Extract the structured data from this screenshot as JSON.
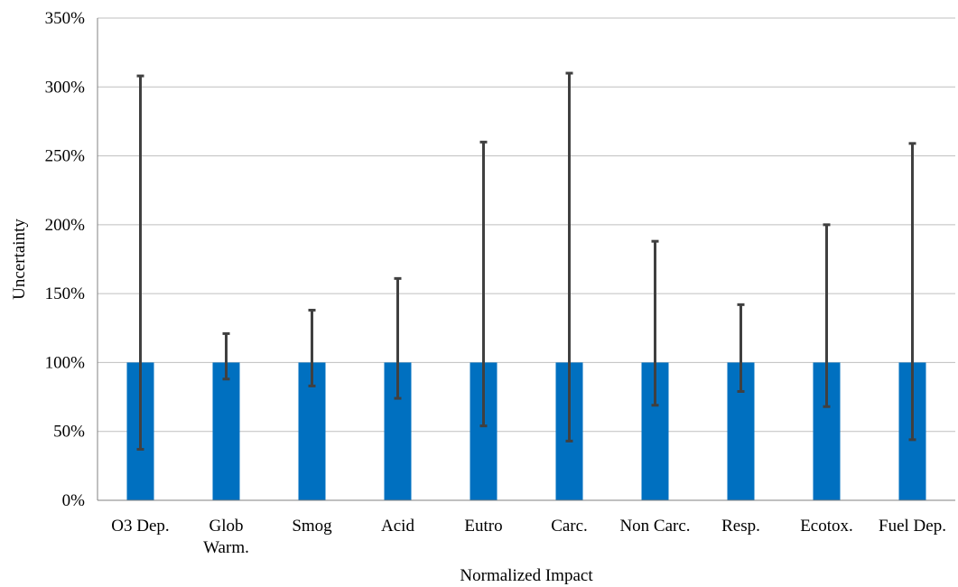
{
  "chart_data": {
    "type": "bar",
    "title": "",
    "xlabel": "Normalized Impact",
    "ylabel": "Uncertainty",
    "ylim": [
      0,
      350
    ],
    "y_ticks": [
      0,
      50,
      100,
      150,
      200,
      250,
      300,
      350
    ],
    "y_tick_labels": [
      "0%",
      "50%",
      "100%",
      "150%",
      "200%",
      "250%",
      "300%",
      "350%"
    ],
    "grid": true,
    "legend": "none",
    "categories": [
      [
        "O3 Dep."
      ],
      [
        "Glob",
        "Warm."
      ],
      [
        "Smog"
      ],
      [
        "Acid"
      ],
      [
        "Eutro"
      ],
      [
        "Carc."
      ],
      [
        "Non Carc."
      ],
      [
        "Resp."
      ],
      [
        "Ecotox."
      ],
      [
        "Fuel Dep."
      ]
    ],
    "values": [
      100,
      100,
      100,
      100,
      100,
      100,
      100,
      100,
      100,
      100
    ],
    "error_low": [
      37,
      88,
      83,
      74,
      54,
      43,
      69,
      79,
      68,
      44
    ],
    "error_high": [
      308,
      121,
      138,
      161,
      260,
      310,
      188,
      142,
      200,
      259
    ],
    "colors": {
      "bar": "#0070c0",
      "error_bar": "#404040",
      "grid": "#bfbfbf",
      "axis": "#808080"
    }
  }
}
